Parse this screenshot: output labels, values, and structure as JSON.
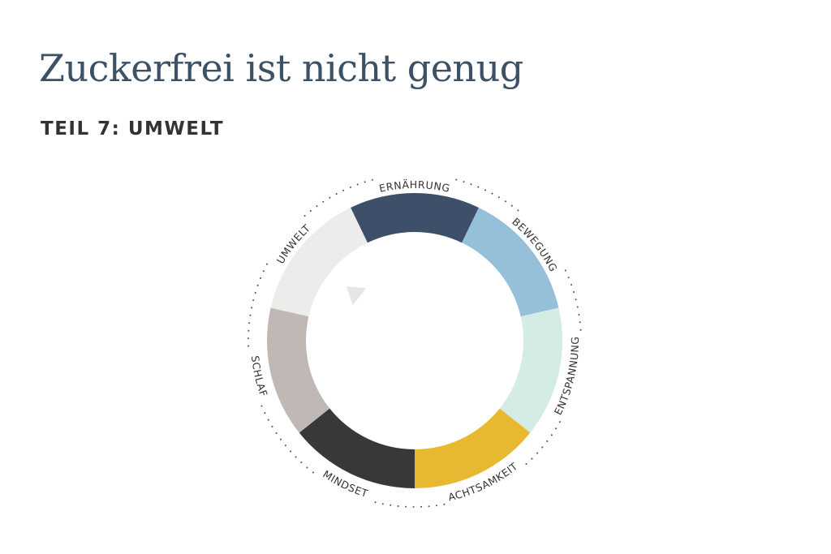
{
  "header": {
    "title": "Zuckerfrei ist nicht genug",
    "subtitle": "TEIL 7: UMWELT"
  },
  "wheel": {
    "active_segment": "UMWELT",
    "segments": [
      {
        "label": "ERNÄHRUNG",
        "color": "#3e5069"
      },
      {
        "label": "BEWEGUNG",
        "color": "#96bfd9"
      },
      {
        "label": "ENTSPANNUNG",
        "color": "#d5ebe6"
      },
      {
        "label": "ACHTSAMKEIT",
        "color": "#e8b930"
      },
      {
        "label": "MINDSET",
        "color": "#383838"
      },
      {
        "label": "SCHLAF",
        "color": "#bfb8b5"
      },
      {
        "label": "UMWELT",
        "color": "#ececea"
      }
    ],
    "dots_color": "#555555",
    "pointer_color": "#e6e6e4"
  }
}
